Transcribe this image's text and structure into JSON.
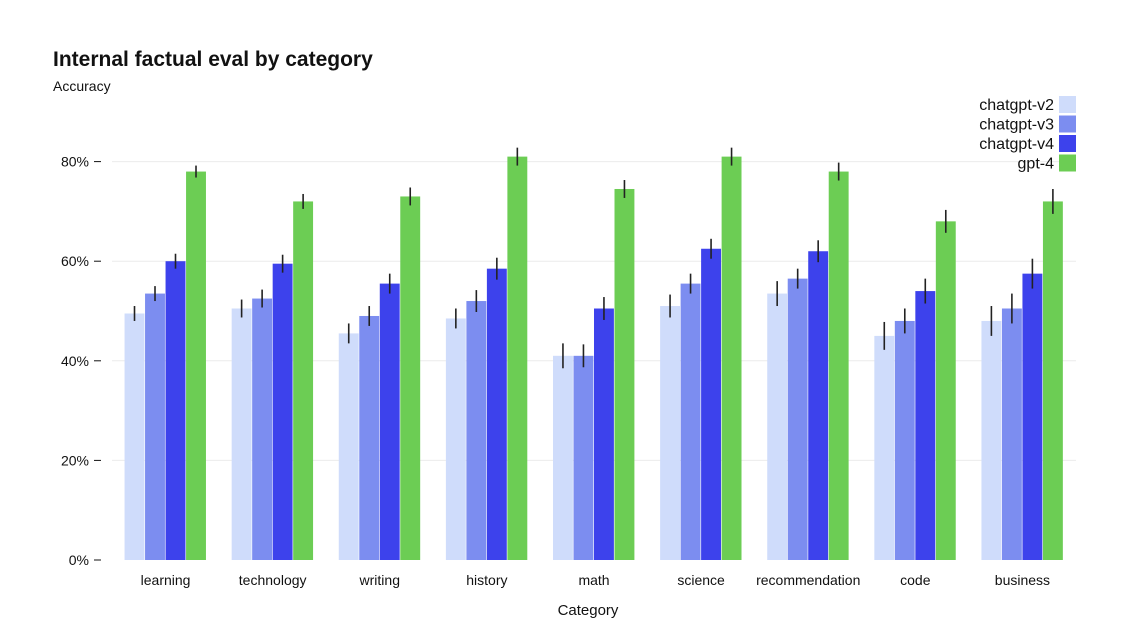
{
  "chart_data": {
    "type": "bar",
    "title": "Internal factual eval by category",
    "ylabel": "Accuracy",
    "xlabel": "Category",
    "ylim": [
      0,
      100
    ],
    "yticks": [
      0,
      20,
      40,
      60,
      80
    ],
    "ytick_labels": [
      "0%",
      "20%",
      "40%",
      "60%",
      "80%"
    ],
    "categories": [
      "learning",
      "technology",
      "writing",
      "history",
      "math",
      "science",
      "recommendation",
      "code",
      "business"
    ],
    "legend_position": "top-right",
    "series": [
      {
        "name": "chatgpt-v2",
        "color": "#cfdcfb",
        "values": [
          49.5,
          50.5,
          45.5,
          48.5,
          41.0,
          51.0,
          53.5,
          45.0,
          48.0
        ],
        "errors": [
          1.5,
          1.8,
          2.0,
          2.0,
          2.5,
          2.3,
          2.5,
          2.8,
          3.0
        ]
      },
      {
        "name": "chatgpt-v3",
        "color": "#7c8df0",
        "values": [
          53.5,
          52.5,
          49.0,
          52.0,
          41.0,
          55.5,
          56.5,
          48.0,
          50.5
        ],
        "errors": [
          1.5,
          1.8,
          2.0,
          2.2,
          2.3,
          2.0,
          2.0,
          2.5,
          3.0
        ]
      },
      {
        "name": "chatgpt-v4",
        "color": "#3d42ec",
        "values": [
          60.0,
          59.5,
          55.5,
          58.5,
          50.5,
          62.5,
          62.0,
          54.0,
          57.5
        ],
        "errors": [
          1.5,
          1.8,
          2.0,
          2.2,
          2.3,
          2.0,
          2.2,
          2.5,
          3.0
        ]
      },
      {
        "name": "gpt-4",
        "color": "#6ccd54",
        "values": [
          78.0,
          72.0,
          73.0,
          81.0,
          74.5,
          81.0,
          78.0,
          68.0,
          72.0
        ],
        "errors": [
          1.2,
          1.5,
          1.8,
          1.8,
          1.8,
          1.8,
          1.8,
          2.3,
          2.5
        ]
      }
    ]
  }
}
